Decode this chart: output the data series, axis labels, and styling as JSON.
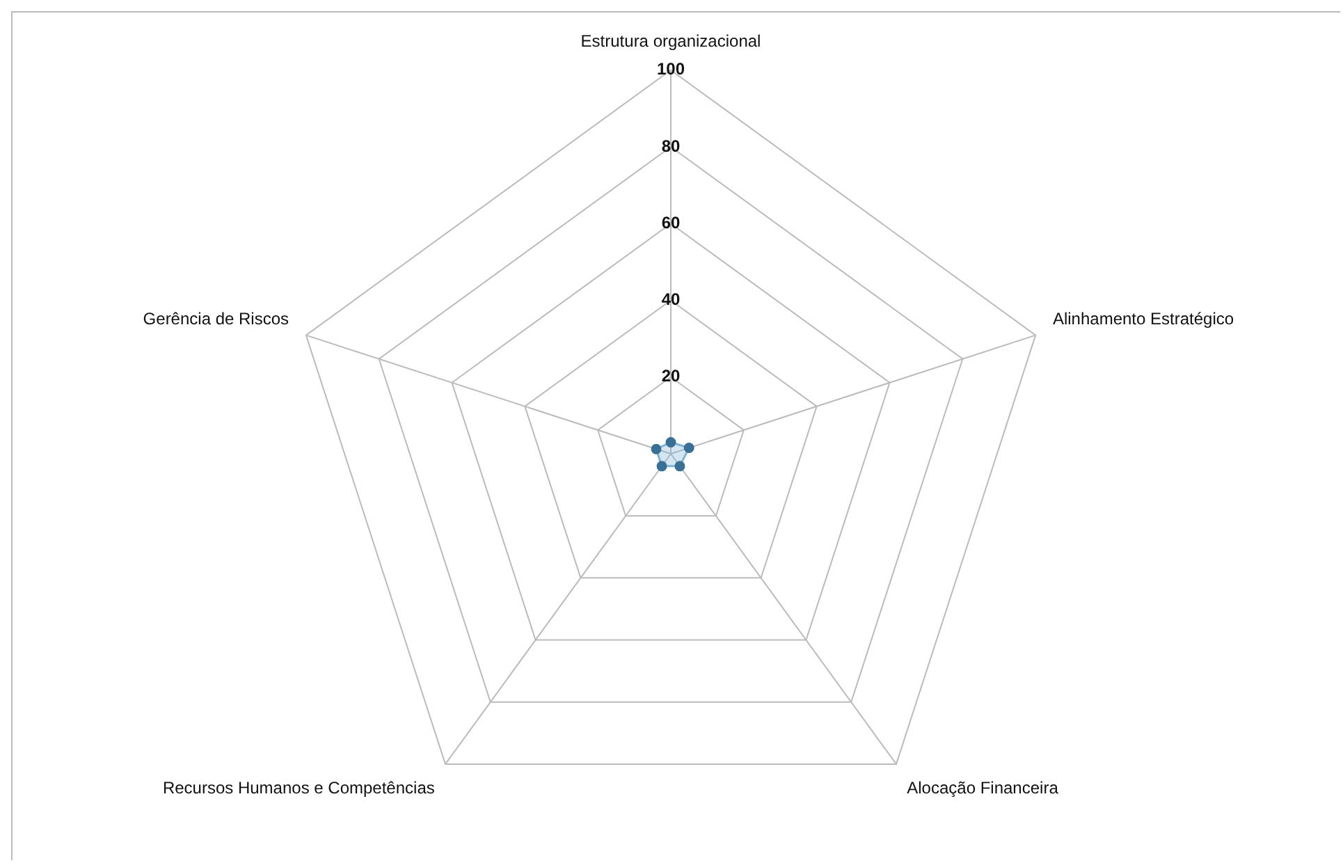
{
  "chart_data": {
    "type": "radar",
    "categories": [
      "Estrutura organizacional",
      "Alinhamento Estratégico",
      "Alocação Financeira",
      "Recursos Humanos e Competências",
      "Gerência de Riscos"
    ],
    "series": [
      {
        "color": "#7fb3d5",
        "values": [
          3,
          5,
          4,
          4,
          4
        ]
      }
    ],
    "ylim": [
      0,
      100
    ],
    "yticks": [
      20,
      40,
      60,
      80,
      100
    ],
    "grid": true,
    "marker": "circle",
    "legend": false
  }
}
